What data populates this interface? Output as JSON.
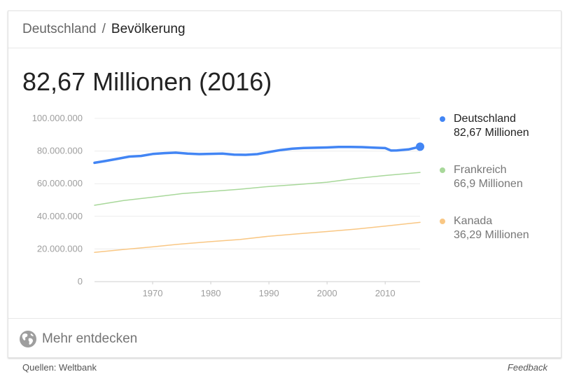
{
  "breadcrumb": {
    "root": "Deutschland",
    "separator": "/",
    "current": "Bevölkerung"
  },
  "headline": "82,67 Millionen (2016)",
  "legend": [
    {
      "name": "Deutschland",
      "value": "82,67 Millionen",
      "color": "#4285f4",
      "text_color": "#222222"
    },
    {
      "name": "Frankreich",
      "value": "66,9 Millionen",
      "color": "#a8d89a",
      "text_color": "#777777"
    },
    {
      "name": "Kanada",
      "value": "36,29 Millionen",
      "color": "#f9c784",
      "text_color": "#777777"
    }
  ],
  "explore": {
    "label": "Mehr entdecken",
    "icon": "globe-icon"
  },
  "footer": {
    "source": "Quellen: Weltbank",
    "feedback": "Feedback"
  },
  "chart_data": {
    "type": "line",
    "xlim": [
      1960,
      2016
    ],
    "ylim": [
      0,
      100000000
    ],
    "xticks": [
      1970,
      1980,
      1990,
      2000,
      2010
    ],
    "xtick_labels": [
      "1970",
      "1980",
      "1990",
      "2000",
      "2010"
    ],
    "yticks": [
      0,
      20000000,
      40000000,
      60000000,
      80000000,
      100000000
    ],
    "ytick_labels": [
      "0",
      "20.000.000",
      "40.000.000",
      "60.000.000",
      "80.000.000",
      "100.000.000"
    ],
    "grid": true,
    "legend_position": "right",
    "series": [
      {
        "name": "Deutschland",
        "color": "#4285f4",
        "highlight_last": true,
        "x": [
          1960,
          1962,
          1964,
          1966,
          1968,
          1970,
          1972,
          1974,
          1976,
          1978,
          1980,
          1982,
          1984,
          1986,
          1988,
          1990,
          1992,
          1994,
          1996,
          1998,
          2000,
          2002,
          2004,
          2006,
          2008,
          2010,
          2011,
          2012,
          2014,
          2016
        ],
        "y": [
          72800000,
          74000000,
          75300000,
          76600000,
          77000000,
          78200000,
          78700000,
          79000000,
          78400000,
          78100000,
          78300000,
          78400000,
          77800000,
          77700000,
          78100000,
          79400000,
          80600000,
          81400000,
          81900000,
          82000000,
          82200000,
          82500000,
          82500000,
          82400000,
          82100000,
          81800000,
          80300000,
          80400000,
          81000000,
          82670000
        ]
      },
      {
        "name": "Frankreich",
        "color": "#a8d89a",
        "highlight_last": false,
        "x": [
          1960,
          1965,
          1970,
          1975,
          1980,
          1985,
          1990,
          1995,
          2000,
          2005,
          2010,
          2016
        ],
        "y": [
          46800000,
          49700000,
          51700000,
          53900000,
          55300000,
          56600000,
          58300000,
          59500000,
          60900000,
          63200000,
          65000000,
          66900000
        ]
      },
      {
        "name": "Kanada",
        "color": "#f9c784",
        "highlight_last": false,
        "x": [
          1960,
          1965,
          1970,
          1975,
          1980,
          1985,
          1990,
          1995,
          2000,
          2005,
          2010,
          2016
        ],
        "y": [
          17900000,
          19700000,
          21300000,
          23100000,
          24500000,
          25800000,
          27800000,
          29300000,
          30700000,
          32200000,
          34000000,
          36290000
        ]
      }
    ]
  }
}
